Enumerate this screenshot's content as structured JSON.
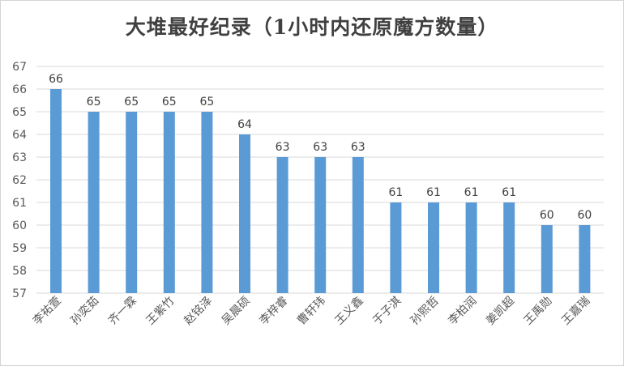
{
  "chart_data": {
    "type": "bar",
    "title": "大堆最好纪录（1小时内还原魔方数量）",
    "categories": [
      "李祐萱",
      "孙奕茹",
      "齐一霖",
      "王紫竹",
      "赵铭泽",
      "吴晨硕",
      "李梓睿",
      "曹轩玮",
      "王义鑫",
      "于子淇",
      "孙熙哲",
      "李柏润",
      "姜凯超",
      "王禹勋",
      "王嘉瑞"
    ],
    "values": [
      66,
      65,
      65,
      65,
      65,
      64,
      63,
      63,
      63,
      61,
      61,
      61,
      61,
      60,
      60
    ],
    "ylim": [
      57,
      67
    ],
    "yticks": [
      57,
      58,
      59,
      60,
      61,
      62,
      63,
      64,
      65,
      66,
      67
    ],
    "grid": true,
    "legend": "none",
    "bar_color": "#5b9bd5",
    "grid_color": "#d9d9d9"
  }
}
